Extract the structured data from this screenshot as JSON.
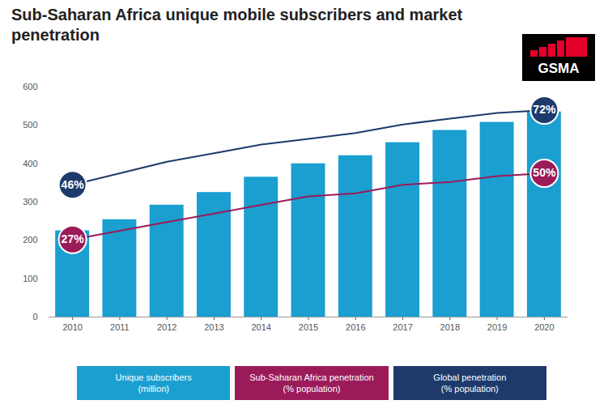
{
  "chart_data": {
    "type": "bar",
    "title": "Sub-Saharan Africa unique mobile subscribers and market penetration",
    "logo": "GSMA",
    "categories": [
      "2010",
      "2011",
      "2012",
      "2013",
      "2014",
      "2015",
      "2016",
      "2017",
      "2018",
      "2019",
      "2020"
    ],
    "series": [
      {
        "name": "Unique subscribers (million)",
        "type": "bar",
        "color": "#1a9fd0",
        "values": [
          225,
          254,
          292,
          325,
          365,
          400,
          421,
          455,
          487,
          508,
          535
        ]
      },
      {
        "name": "Sub-Saharan Africa penetration (% population)",
        "type": "line",
        "axis": "y2",
        "color": "#9b1b5a",
        "values": [
          27,
          30,
          33,
          36,
          39,
          42,
          43,
          46,
          47,
          49,
          50
        ],
        "data_labels": true,
        "value_labels": [
          "27%",
          null,
          null,
          null,
          null,
          null,
          null,
          null,
          null,
          null,
          "50%"
        ]
      },
      {
        "name": "Global penetration (% population)",
        "type": "line",
        "axis": "y2",
        "color": "#1e3a6b",
        "values": [
          46,
          50,
          54,
          57,
          60,
          62,
          64,
          67,
          69,
          71,
          72
        ],
        "data_labels": true,
        "value_labels": [
          "46%",
          null,
          null,
          null,
          null,
          null,
          null,
          null,
          null,
          null,
          "72%"
        ]
      }
    ],
    "ylim": [
      0,
      600
    ],
    "yticks": [
      0,
      100,
      200,
      300,
      400,
      500,
      600
    ],
    "y2lim": [
      0,
      80
    ],
    "y2ticks": [],
    "grid": false,
    "legend": "bottom"
  }
}
